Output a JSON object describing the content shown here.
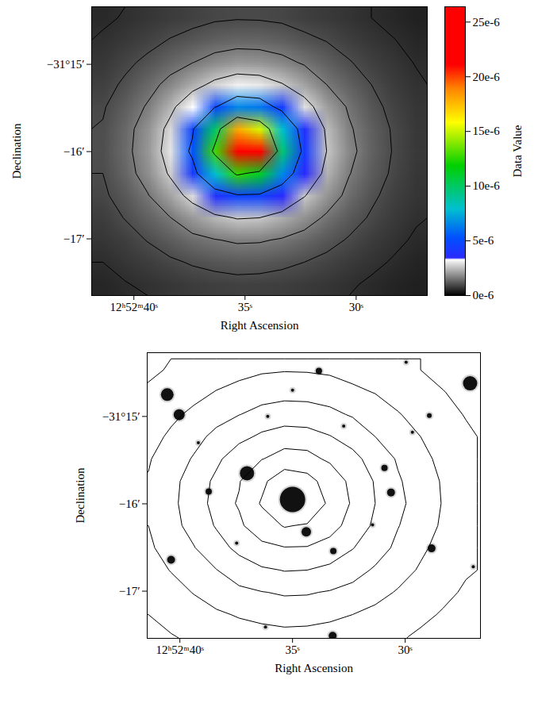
{
  "chart_data": [
    {
      "type": "heatmap",
      "x_label": "Right Ascension",
      "y_label": "Declination",
      "xlim": [
        41.9,
        26.8
      ],
      "ylim": [
        -17.65,
        -14.34
      ],
      "xticks": [
        {
          "value": 40,
          "label": "12ʰ52ᵐ40ˢ"
        },
        {
          "value": 35,
          "label": "35ˢ"
        },
        {
          "value": 30,
          "label": "30ˢ"
        }
      ],
      "yticks": [
        {
          "value": -15,
          "label": "−31°15′"
        },
        {
          "value": -16,
          "label": "−16′"
        },
        {
          "value": -17,
          "label": "−17′"
        }
      ],
      "cells": [
        [
          5.4e-07,
          6.3e-07,
          7.1e-07,
          7.9e-07,
          8.6e-07,
          9.4e-07,
          9.7e-07,
          9.6e-07,
          9.2e-07,
          8.3e-07,
          7.6e-07,
          6.9e-07,
          6e-07,
          5.1e-07,
          4.4e-07
        ],
        [
          6.5e-07,
          7.5e-07,
          8.7e-07,
          1.02e-06,
          1.15e-06,
          1.28e-06,
          1.35e-06,
          1.33e-06,
          1.25e-06,
          1.1e-06,
          9.8e-07,
          8.2e-07,
          7.1e-07,
          6.1e-07,
          5.1e-07
        ],
        [
          7.4e-07,
          9.1e-07,
          1.09e-06,
          1.35e-06,
          1.58e-06,
          1.84e-06,
          1.99e-06,
          1.96e-06,
          1.78e-06,
          1.52e-06,
          1.27e-06,
          1.03e-06,
          8.4e-07,
          7.1e-07,
          5.8e-07
        ],
        [
          8.5e-07,
          1.07e-06,
          1.38e-06,
          1.78e-06,
          2.28e-06,
          2.8e-06,
          3.15e-06,
          3.05e-06,
          2.65e-06,
          2.14e-06,
          1.6e-06,
          1.28e-06,
          1e-06,
          7.9e-07,
          6.6e-07
        ],
        [
          9.6e-07,
          1.25e-06,
          1.66e-06,
          2.36e-06,
          3.3e-06,
          4.85e-06,
          6.6e-06,
          6.2e-06,
          4.3e-06,
          2.95e-06,
          2.1e-06,
          1.52e-06,
          1.13e-06,
          8.8e-07,
          7.1e-07
        ],
        [
          1.03e-06,
          1.38e-06,
          1.93e-06,
          2.85e-06,
          4.7e-06,
          1e-05,
          1.8e-05,
          1.52e-05,
          7.9e-06,
          3.75e-06,
          2.48e-06,
          1.68e-06,
          1.25e-06,
          9.5e-07,
          7.4e-07
        ],
        [
          1.04e-06,
          1.42e-06,
          1.99e-06,
          3e-06,
          5.4e-06,
          1.28e-05,
          2.55e-05,
          2.15e-05,
          9.7e-06,
          4.3e-06,
          2.6e-06,
          1.78e-06,
          1.28e-06,
          9.7e-07,
          7.5e-07
        ],
        [
          1e-06,
          1.35e-06,
          1.87e-06,
          2.7e-06,
          4.2e-06,
          7.9e-06,
          1.26e-05,
          1.11e-05,
          6.6e-06,
          3.45e-06,
          2.36e-06,
          1.63e-06,
          1.22e-06,
          9.3e-07,
          7.3e-07
        ],
        [
          9.3e-07,
          1.18e-06,
          1.56e-06,
          2.14e-06,
          2.9e-06,
          3.75e-06,
          4.7e-06,
          4.6e-06,
          3.45e-06,
          2.65e-06,
          1.96e-06,
          1.43e-06,
          1.08e-06,
          8.5e-07,
          7e-07
        ],
        [
          8.1e-07,
          1.02e-06,
          1.28e-06,
          1.58e-06,
          2e-06,
          2.4e-06,
          2.65e-06,
          2.6e-06,
          2.28e-06,
          1.9e-06,
          1.5e-06,
          1.18e-06,
          9.5e-07,
          7.6e-07,
          6.3e-07
        ],
        [
          7.1e-07,
          8.3e-07,
          1.02e-06,
          1.22e-06,
          1.43e-06,
          1.57e-06,
          1.68e-06,
          1.66e-06,
          1.54e-06,
          1.36e-06,
          1.15e-06,
          9.6e-07,
          7.9e-07,
          6.7e-07,
          5.6e-07
        ],
        [
          6e-07,
          7.1e-07,
          8e-07,
          9.3e-07,
          1.04e-06,
          1.12e-06,
          1.18e-06,
          1.16e-06,
          1.09e-06,
          1e-06,
          8.8e-07,
          7.7e-07,
          6.7e-07,
          5.7e-07,
          4.8e-07
        ],
        [
          5e-07,
          5.8e-07,
          6.6e-07,
          7.3e-07,
          7.9e-07,
          8.3e-07,
          8.6e-07,
          8.5e-07,
          8.2e-07,
          7.7e-07,
          7.1e-07,
          6.4e-07,
          5.5e-07,
          4.8e-07,
          4.2e-07
        ]
      ],
      "contour_levels": [
        6e-07,
        1e-06,
        1.6e-06,
        2.6e-06,
        5e-06,
        1.2e-05
      ],
      "colorbar": {
        "label": "Data Value",
        "range": [
          0,
          2.64e-05
        ],
        "ticks": [
          {
            "value": 0,
            "label": "0e-6"
          },
          {
            "value": 5e-06,
            "label": "5e-6"
          },
          {
            "value": 1e-05,
            "label": "10e-6"
          },
          {
            "value": 1.5e-05,
            "label": "15e-6"
          },
          {
            "value": 2e-05,
            "label": "20e-6"
          },
          {
            "value": 2.5e-05,
            "label": "25e-6"
          }
        ]
      }
    },
    {
      "type": "scatter",
      "x_label": "Right Ascension",
      "y_label": "Declination",
      "xlim": [
        41.45,
        26.66
      ],
      "ylim": [
        -17.54,
        -14.27
      ],
      "xticks": [
        {
          "value": 40,
          "label": "12ʰ52ᵐ40ˢ"
        },
        {
          "value": 35,
          "label": "35ˢ"
        },
        {
          "value": 30,
          "label": "30ˢ"
        }
      ],
      "yticks": [
        {
          "value": -15,
          "label": "−31°15′"
        },
        {
          "value": -16,
          "label": "−16′"
        },
        {
          "value": -17,
          "label": "−17′"
        }
      ],
      "color": "#111111",
      "x": [
        40.56,
        40.03,
        33.83,
        35.0,
        27.12,
        28.93,
        38.72,
        37.02,
        35.0,
        34.39,
        33.19,
        30.92,
        30.63,
        28.83,
        40.39,
        33.22,
        31.45,
        36.1,
        37.48,
        29.68,
        29.96,
        32.73,
        26.98,
        36.2,
        39.18
      ],
      "y": [
        -14.75,
        -14.98,
        -14.48,
        -14.7,
        -14.62,
        -14.99,
        -15.86,
        -15.65,
        -15.95,
        -16.32,
        -16.54,
        -15.59,
        -15.87,
        -16.51,
        -16.64,
        -17.51,
        -16.24,
        -15.0,
        -16.45,
        -15.18,
        -14.38,
        -15.11,
        -16.72,
        -17.41,
        -15.3
      ],
      "sizes": [
        8,
        7,
        4,
        2,
        9,
        3,
        4,
        9,
        16,
        6,
        4,
        4,
        5,
        5,
        5,
        5,
        2,
        2,
        2,
        2,
        2,
        2,
        2,
        2,
        2
      ]
    }
  ]
}
